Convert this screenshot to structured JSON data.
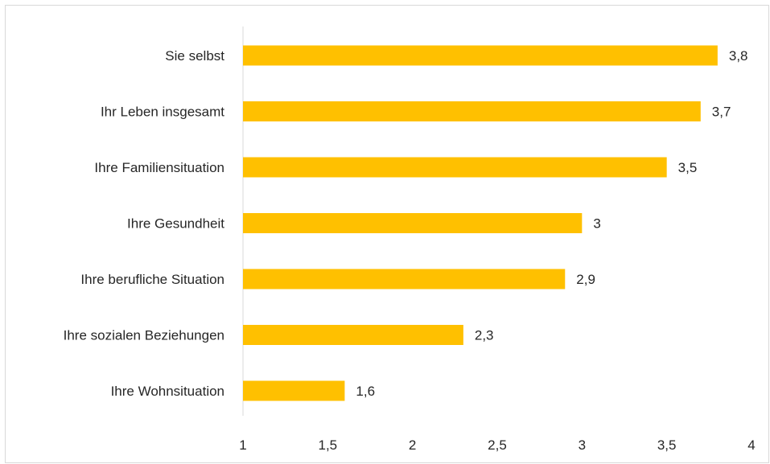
{
  "chart_data": {
    "type": "bar",
    "orientation": "horizontal",
    "categories": [
      "Sie selbst",
      "Ihr Leben insgesamt",
      "Ihre Familiensituation",
      "Ihre Gesundheit",
      "Ihre berufliche Situation",
      "Ihre sozialen Beziehungen",
      "Ihre Wohnsituation"
    ],
    "values": [
      3.8,
      3.7,
      3.5,
      3,
      2.9,
      2.3,
      1.6
    ],
    "value_labels": [
      "3,8",
      "3,7",
      "3,5",
      "3",
      "2,9",
      "2,3",
      "1,6"
    ],
    "xlim": [
      1,
      4
    ],
    "x_ticks": [
      1,
      1.5,
      2,
      2.5,
      3,
      3.5,
      4
    ],
    "x_tick_labels": [
      "1",
      "1,5",
      "2",
      "2,5",
      "3",
      "3,5",
      "4"
    ],
    "title": "",
    "xlabel": "",
    "ylabel": "",
    "grid": false,
    "bar_color": "#FFC000",
    "axis_color": "#d9d9d9",
    "text_color": "#262626"
  }
}
